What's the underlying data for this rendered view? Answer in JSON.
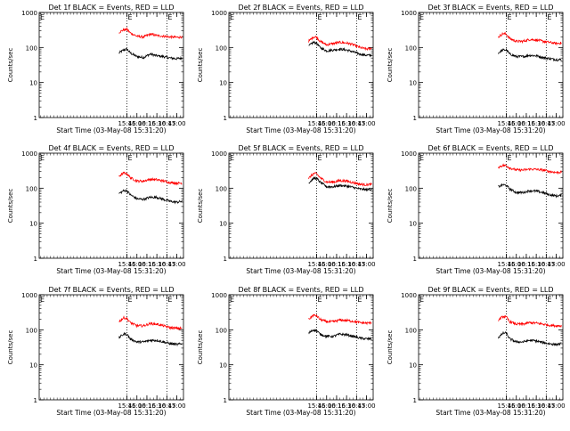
{
  "figure": {
    "layout": "3x3 grid",
    "colors": {
      "events": "#000000",
      "lld": "#ff0000",
      "marker": "#000000",
      "background": "#ffffff"
    }
  },
  "chart_data": [
    {
      "type": "line",
      "title": "Det 1f BLACK = Events, RED = LLD",
      "xlabel": "Start Time (03-May-08 15:31:20)",
      "ylabel": "Counts/sec",
      "y_scale": "log",
      "ylim": [
        1,
        1000
      ],
      "y_ticks": [
        "1",
        "10",
        "100",
        "1000"
      ],
      "xlim": [
        "13:33",
        "17:10"
      ],
      "x_ticks": [
        "15:45",
        "16:00",
        "16:15",
        "16:30",
        "16:45",
        "17:00"
      ],
      "markers": [
        "15:45",
        "16:45"
      ],
      "marker_label": "E",
      "grid": false,
      "series": [
        {
          "role": "events",
          "x": [
            "15:33",
            "15:40",
            "15:45",
            "15:50",
            "16:00",
            "16:10",
            "16:20",
            "16:30",
            "16:40",
            "16:50",
            "17:00",
            "17:08"
          ],
          "values": [
            70,
            85,
            90,
            70,
            55,
            52,
            65,
            58,
            55,
            50,
            48,
            50
          ]
        },
        {
          "role": "lld",
          "x": [
            "15:33",
            "15:40",
            "15:45",
            "15:50",
            "16:00",
            "16:10",
            "16:20",
            "16:30",
            "16:40",
            "16:50",
            "17:00",
            "17:08"
          ],
          "values": [
            270,
            320,
            330,
            260,
            210,
            200,
            240,
            220,
            210,
            200,
            195,
            200
          ]
        }
      ]
    },
    {
      "type": "line",
      "title": "Det 2f BLACK = Events, RED = LLD",
      "xlabel": "Start Time (03-May-08 15:31:20)",
      "ylabel": "Counts/sec",
      "y_scale": "log",
      "ylim": [
        1,
        1000
      ],
      "y_ticks": [
        "1",
        "10",
        "100",
        "1000"
      ],
      "xlim": [
        "13:33",
        "17:10"
      ],
      "x_ticks": [
        "15:45",
        "16:00",
        "16:15",
        "16:30",
        "16:45",
        "17:00"
      ],
      "markers": [
        "15:45",
        "16:45"
      ],
      "marker_label": "E",
      "grid": false,
      "series": [
        {
          "role": "events",
          "x": [
            "15:33",
            "15:40",
            "15:45",
            "15:50",
            "16:00",
            "16:10",
            "16:20",
            "16:30",
            "16:40",
            "16:50",
            "17:00",
            "17:08"
          ],
          "values": [
            110,
            140,
            135,
            100,
            80,
            85,
            90,
            85,
            75,
            65,
            60,
            60
          ]
        },
        {
          "role": "lld",
          "x": [
            "15:33",
            "15:40",
            "15:45",
            "15:50",
            "16:00",
            "16:10",
            "16:20",
            "16:30",
            "16:40",
            "16:50",
            "17:00",
            "17:08"
          ],
          "values": [
            150,
            200,
            200,
            150,
            120,
            130,
            140,
            135,
            120,
            100,
            90,
            95
          ]
        }
      ]
    },
    {
      "type": "line",
      "title": "Det 3f BLACK = Events, RED = LLD",
      "xlabel": "Start Time (03-May-08 15:31:20)",
      "ylabel": "Counts/sec",
      "y_scale": "log",
      "ylim": [
        1,
        1000
      ],
      "y_ticks": [
        "1",
        "10",
        "100",
        "1000"
      ],
      "xlim": [
        "13:33",
        "17:10"
      ],
      "x_ticks": [
        "15:45",
        "16:00",
        "16:15",
        "16:30",
        "16:45",
        "17:00"
      ],
      "markers": [
        "15:45",
        "16:45"
      ],
      "marker_label": "E",
      "grid": false,
      "series": [
        {
          "role": "events",
          "x": [
            "15:33",
            "15:40",
            "15:45",
            "15:50",
            "16:00",
            "16:10",
            "16:20",
            "16:30",
            "16:40",
            "16:50",
            "17:00",
            "17:08"
          ],
          "values": [
            70,
            85,
            85,
            65,
            55,
            55,
            60,
            58,
            52,
            48,
            45,
            45
          ]
        },
        {
          "role": "lld",
          "x": [
            "15:33",
            "15:40",
            "15:45",
            "15:50",
            "16:00",
            "16:10",
            "16:20",
            "16:30",
            "16:40",
            "16:50",
            "17:00",
            "17:08"
          ],
          "values": [
            200,
            250,
            240,
            180,
            150,
            150,
            170,
            165,
            150,
            140,
            130,
            135
          ]
        }
      ]
    },
    {
      "type": "line",
      "title": "Det 4f BLACK = Events, RED = LLD",
      "xlabel": "Start Time (03-May-08 15:31:20)",
      "ylabel": "Counts/sec",
      "y_scale": "log",
      "ylim": [
        1,
        1000
      ],
      "y_ticks": [
        "1",
        "10",
        "100",
        "1000"
      ],
      "xlim": [
        "13:33",
        "17:10"
      ],
      "x_ticks": [
        "15:45",
        "16:00",
        "16:15",
        "16:30",
        "16:45",
        "17:00"
      ],
      "markers": [
        "15:45",
        "16:45"
      ],
      "marker_label": "E",
      "grid": false,
      "series": [
        {
          "role": "events",
          "x": [
            "15:33",
            "15:40",
            "15:45",
            "15:50",
            "16:00",
            "16:10",
            "16:20",
            "16:30",
            "16:40",
            "16:50",
            "17:00",
            "17:08"
          ],
          "values": [
            70,
            85,
            85,
            65,
            50,
            48,
            55,
            55,
            48,
            42,
            40,
            42
          ]
        },
        {
          "role": "lld",
          "x": [
            "15:33",
            "15:40",
            "15:45",
            "15:50",
            "16:00",
            "16:10",
            "16:20",
            "16:30",
            "16:40",
            "16:50",
            "17:00",
            "17:08"
          ],
          "values": [
            220,
            270,
            260,
            200,
            160,
            160,
            180,
            175,
            160,
            145,
            140,
            140
          ]
        }
      ]
    },
    {
      "type": "line",
      "title": "Det 5f BLACK = Events, RED = LLD",
      "xlabel": "Start Time (03-May-08 15:31:20)",
      "ylabel": "Counts/sec",
      "y_scale": "log",
      "ylim": [
        1,
        1000
      ],
      "y_ticks": [
        "1",
        "10",
        "100",
        "1000"
      ],
      "xlim": [
        "13:33",
        "17:10"
      ],
      "x_ticks": [
        "15:45",
        "16:00",
        "16:15",
        "16:30",
        "16:45",
        "17:00"
      ],
      "markers": [
        "15:45",
        "16:45"
      ],
      "marker_label": "E",
      "grid": false,
      "series": [
        {
          "role": "events",
          "x": [
            "15:33",
            "15:40",
            "15:45",
            "15:50",
            "16:00",
            "16:10",
            "16:20",
            "16:30",
            "16:40",
            "16:50",
            "17:00",
            "17:08"
          ],
          "values": [
            140,
            190,
            190,
            150,
            110,
            110,
            120,
            115,
            105,
            95,
            90,
            95
          ]
        },
        {
          "role": "lld",
          "x": [
            "15:33",
            "15:40",
            "15:45",
            "15:50",
            "16:00",
            "16:10",
            "16:20",
            "16:30",
            "16:40",
            "16:50",
            "17:00",
            "17:08"
          ],
          "values": [
            190,
            260,
            260,
            200,
            150,
            150,
            165,
            160,
            145,
            130,
            125,
            130
          ]
        }
      ]
    },
    {
      "type": "line",
      "title": "Det 6f BLACK = Events, RED = LLD",
      "xlabel": "Start Time (03-May-08 15:31:20)",
      "ylabel": "Counts/sec",
      "y_scale": "log",
      "ylim": [
        1,
        1000
      ],
      "y_ticks": [
        "1",
        "10",
        "100",
        "1000"
      ],
      "xlim": [
        "13:33",
        "17:10"
      ],
      "x_ticks": [
        "15:45",
        "16:00",
        "16:15",
        "16:30",
        "16:45",
        "17:00"
      ],
      "markers": [
        "15:45",
        "16:45"
      ],
      "marker_label": "E",
      "grid": false,
      "series": [
        {
          "role": "events",
          "x": [
            "15:33",
            "15:40",
            "15:45",
            "15:50",
            "16:00",
            "16:10",
            "16:20",
            "16:30",
            "16:40",
            "16:50",
            "17:00",
            "17:08"
          ],
          "values": [
            110,
            125,
            120,
            95,
            75,
            75,
            85,
            82,
            75,
            65,
            60,
            62
          ]
        },
        {
          "role": "lld",
          "x": [
            "15:33",
            "15:40",
            "15:45",
            "15:50",
            "16:00",
            "16:10",
            "16:20",
            "16:30",
            "16:40",
            "16:50",
            "17:00",
            "17:08"
          ],
          "values": [
            400,
            450,
            440,
            380,
            330,
            330,
            350,
            345,
            330,
            300,
            280,
            290
          ]
        }
      ]
    },
    {
      "type": "line",
      "title": "Det 7f BLACK = Events, RED = LLD",
      "xlabel": "Start Time (03-May-08 15:31:20)",
      "ylabel": "Counts/sec",
      "y_scale": "log",
      "ylim": [
        1,
        1000
      ],
      "y_ticks": [
        "1",
        "10",
        "100",
        "1000"
      ],
      "xlim": [
        "13:33",
        "17:10"
      ],
      "x_ticks": [
        "15:45",
        "16:00",
        "16:15",
        "16:30",
        "16:45",
        "17:00"
      ],
      "markers": [
        "15:45",
        "16:45"
      ],
      "marker_label": "E",
      "grid": false,
      "series": [
        {
          "role": "events",
          "x": [
            "15:33",
            "15:40",
            "15:45",
            "15:50",
            "16:00",
            "16:10",
            "16:20",
            "16:30",
            "16:40",
            "16:50",
            "17:00",
            "17:08"
          ],
          "values": [
            60,
            75,
            75,
            55,
            45,
            45,
            50,
            50,
            45,
            40,
            38,
            40
          ]
        },
        {
          "role": "lld",
          "x": [
            "15:33",
            "15:40",
            "15:45",
            "15:50",
            "16:00",
            "16:10",
            "16:20",
            "16:30",
            "16:40",
            "16:50",
            "17:00",
            "17:08"
          ],
          "values": [
            170,
            220,
            210,
            160,
            130,
            130,
            150,
            145,
            130,
            115,
            110,
            110
          ]
        }
      ]
    },
    {
      "type": "line",
      "title": "Det 8f BLACK = Events, RED = LLD",
      "xlabel": "Start Time (03-May-08 15:31:20)",
      "ylabel": "Counts/sec",
      "y_scale": "log",
      "ylim": [
        1,
        1000
      ],
      "y_ticks": [
        "1",
        "10",
        "100",
        "1000"
      ],
      "xlim": [
        "13:33",
        "17:10"
      ],
      "x_ticks": [
        "15:45",
        "16:00",
        "16:15",
        "16:30",
        "16:45",
        "17:00"
      ],
      "markers": [
        "15:45",
        "16:45"
      ],
      "marker_label": "E",
      "grid": false,
      "series": [
        {
          "role": "events",
          "x": [
            "15:33",
            "15:40",
            "15:45",
            "15:50",
            "16:00",
            "16:10",
            "16:20",
            "16:30",
            "16:40",
            "16:50",
            "17:00",
            "17:08"
          ],
          "values": [
            80,
            100,
            95,
            75,
            65,
            65,
            75,
            72,
            65,
            58,
            55,
            55
          ]
        },
        {
          "role": "lld",
          "x": [
            "15:33",
            "15:40",
            "15:45",
            "15:50",
            "16:00",
            "16:10",
            "16:20",
            "16:30",
            "16:40",
            "16:50",
            "17:00",
            "17:08"
          ],
          "values": [
            200,
            260,
            250,
            200,
            170,
            170,
            190,
            185,
            175,
            160,
            155,
            160
          ]
        }
      ]
    },
    {
      "type": "line",
      "title": "Det 9f BLACK = Events, RED = LLD",
      "xlabel": "Start Time (03-May-08 15:31:20)",
      "ylabel": "Counts/sec",
      "y_scale": "log",
      "ylim": [
        1,
        1000
      ],
      "y_ticks": [
        "1",
        "10",
        "100",
        "1000"
      ],
      "xlim": [
        "13:33",
        "17:10"
      ],
      "x_ticks": [
        "15:45",
        "16:00",
        "16:15",
        "16:30",
        "16:45",
        "17:00"
      ],
      "markers": [
        "15:45",
        "16:45"
      ],
      "marker_label": "E",
      "grid": false,
      "series": [
        {
          "role": "events",
          "x": [
            "15:33",
            "15:40",
            "15:45",
            "15:50",
            "16:00",
            "16:10",
            "16:20",
            "16:30",
            "16:40",
            "16:50",
            "17:00",
            "17:08"
          ],
          "values": [
            60,
            80,
            80,
            55,
            45,
            45,
            50,
            48,
            43,
            40,
            38,
            40
          ]
        },
        {
          "role": "lld",
          "x": [
            "15:33",
            "15:40",
            "15:45",
            "15:50",
            "16:00",
            "16:10",
            "16:20",
            "16:30",
            "16:40",
            "16:50",
            "17:00",
            "17:08"
          ],
          "values": [
            190,
            240,
            230,
            170,
            145,
            145,
            160,
            155,
            145,
            135,
            130,
            130
          ]
        }
      ]
    }
  ]
}
